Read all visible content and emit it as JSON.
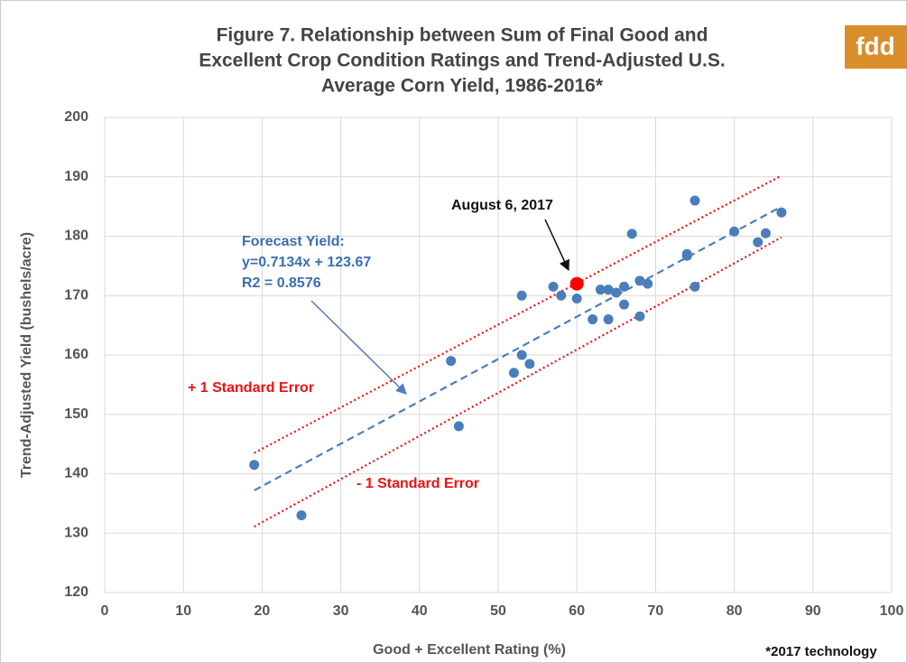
{
  "chart_data": {
    "type": "scatter",
    "title": [
      "Figure 7. Relationship between Sum of Final Good and",
      "Excellent Crop Condition Ratings and Trend-Adjusted U.S.",
      "Average Corn Yield, 1986-2016*"
    ],
    "x_label": "Good + Excellent Rating (%)",
    "y_label": "Trend-Adjusted Yield (bushels/acre)",
    "footnote": "*2017 technology",
    "logo": "fdd",
    "xlim": [
      0,
      100
    ],
    "ylim": [
      120,
      200
    ],
    "xticks": [
      0,
      10,
      20,
      30,
      40,
      50,
      60,
      70,
      80,
      90,
      100
    ],
    "yticks": [
      120,
      130,
      140,
      150,
      160,
      170,
      180,
      190,
      200
    ],
    "grid": true,
    "series": [
      {
        "color": "#4a7ebb",
        "x": [
          19,
          25,
          44,
          45,
          52,
          53,
          53,
          54,
          57,
          58,
          60,
          62,
          63,
          64,
          64,
          65,
          66,
          66,
          67,
          68,
          68,
          69,
          74,
          74,
          75,
          75,
          80,
          83,
          84,
          86
        ],
        "values": [
          141.5,
          133,
          159,
          148,
          157,
          170,
          160,
          158.5,
          171.5,
          170,
          169.5,
          166,
          171,
          166,
          171,
          170.5,
          168.5,
          171.5,
          180.4,
          172.5,
          166.5,
          172,
          177,
          176.7,
          186,
          171.5,
          180.8,
          179,
          180.5,
          184
        ]
      },
      {
        "color": "#ff0000",
        "x": [
          60
        ],
        "values": [
          172
        ]
      }
    ],
    "fit_lines": [
      {
        "color": "#4a7ebb",
        "style": "dashed",
        "x": [
          19,
          86
        ],
        "y": [
          137.2,
          185.0
        ]
      },
      {
        "color": "#ee1111",
        "style": "dotted",
        "x": [
          19,
          86
        ],
        "y": [
          143.5,
          190.2
        ]
      },
      {
        "color": "#ee1111",
        "style": "dotted",
        "x": [
          19,
          86
        ],
        "y": [
          131.1,
          179.8
        ]
      }
    ],
    "annotations": [
      {
        "text": "August 6, 2017",
        "color": "#111111"
      },
      {
        "text": "Forecast Yield:",
        "color": "#3a6fb0"
      },
      {
        "text": "y=0.7134x + 123.67",
        "color": "#3a6fb0"
      },
      {
        "text": "R2 = 0.8576",
        "color": "#3a6fb0"
      },
      {
        "text": "+ 1 Standard Error",
        "color": "#ee1111"
      },
      {
        "text": "- 1 Standard Error",
        "color": "#ee1111"
      }
    ]
  }
}
